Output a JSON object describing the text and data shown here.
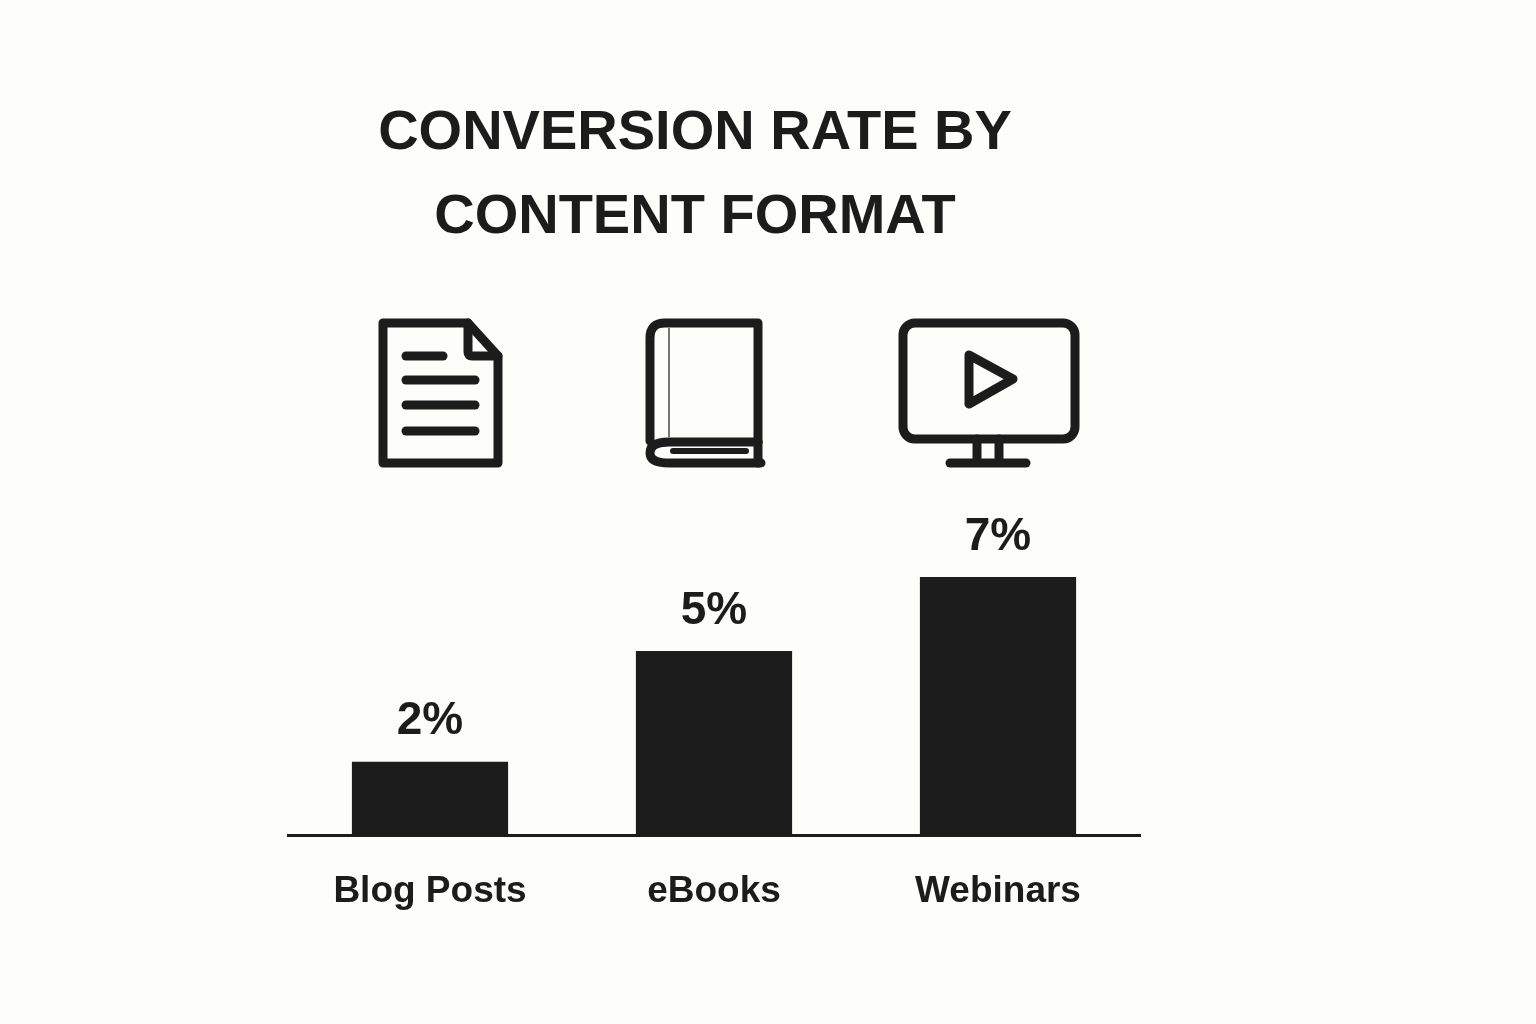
{
  "chart_data": {
    "type": "bar",
    "title": "CONVERSION RATE BY CONTENT FORMAT",
    "categories": [
      "Blog Posts",
      "eBooks",
      "Webinars"
    ],
    "values": [
      2,
      5,
      7
    ],
    "color": "#1c1c1c",
    "value_labels": [
      "2%",
      "5%",
      "7%"
    ],
    "tick_labels": "x"
  }
}
